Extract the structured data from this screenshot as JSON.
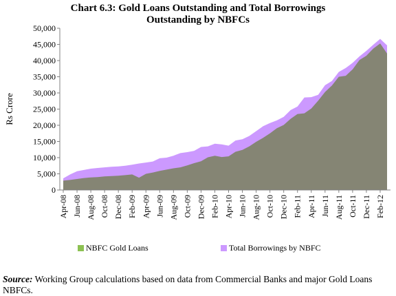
{
  "title_line1": "Chart 6.3: Gold Loans Outstanding and Total Borrowings",
  "title_line2": "Outstanding by NBFCs",
  "source_label": "Source:",
  "source_text": " Working Group calculations based on data from Commercial Banks and major Gold Loans NBFCs.",
  "colors": {
    "gold": "#858574",
    "gold_legend": "#8cc152",
    "borrow": "#cc99ff"
  },
  "chart_data": {
    "type": "area",
    "title": "Chart 6.3: Gold Loans Outstanding and Total Borrowings Outstanding by NBFCs",
    "xlabel": "",
    "ylabel": "Rs Crore",
    "ylim": [
      0,
      50000
    ],
    "yticks": [
      0,
      5000,
      10000,
      15000,
      20000,
      25000,
      30000,
      35000,
      40000,
      45000,
      50000
    ],
    "ytick_labels": [
      "0",
      "5,000",
      "10,000",
      "15,000",
      "20,000",
      "25,000",
      "30,000",
      "35,000",
      "40,000",
      "45,000",
      "50,000"
    ],
    "x": [
      "Apr-08",
      "May-08",
      "Jun-08",
      "Jul-08",
      "Aug-08",
      "Sep-08",
      "Oct-08",
      "Nov-08",
      "Dec-08",
      "Jan-09",
      "Feb-09",
      "Mar-09",
      "Apr-09",
      "May-09",
      "Jun-09",
      "Jul-09",
      "Aug-09",
      "Sep-09",
      "Oct-09",
      "Nov-09",
      "Dec-09",
      "Jan-10",
      "Feb-10",
      "Mar-10",
      "Apr-10",
      "May-10",
      "Jun-10",
      "Jul-10",
      "Aug-10",
      "Sep-10",
      "Oct-10",
      "Nov-10",
      "Dec-10",
      "Jan-11",
      "Feb-11",
      "Mar-11",
      "Apr-11",
      "May-11",
      "Jun-11",
      "Jul-11",
      "Aug-11",
      "Sep-11",
      "Oct-11",
      "Nov-11",
      "Dec-11",
      "Jan-12",
      "Feb-12",
      "Mar-12"
    ],
    "x_tick_labels": [
      "Apr-08",
      "Jun-08",
      "Aug-08",
      "Oct-08",
      "Dec-08",
      "Feb-09",
      "Apr-09",
      "Jun-09",
      "Aug-09",
      "Oct-09",
      "Dec-09",
      "Feb-10",
      "Apr-10",
      "Jun-10",
      "Aug-10",
      "Oct-10",
      "Dec-10",
      "Feb-11",
      "Apr-11",
      "Jun-11",
      "Aug-11",
      "Oct-11",
      "Dec-11",
      "Feb-12"
    ],
    "series": [
      {
        "name": "NBFC Gold Loans",
        "values": [
          2900,
          3100,
          3400,
          3700,
          3900,
          4000,
          4200,
          4300,
          4400,
          4600,
          4800,
          3800,
          5000,
          5400,
          5900,
          6300,
          6700,
          7000,
          7600,
          8300,
          8900,
          10100,
          10600,
          10200,
          10400,
          11800,
          12400,
          13500,
          14900,
          16100,
          17500,
          19100,
          20100,
          22000,
          23500,
          23700,
          25200,
          27600,
          30300,
          32300,
          35000,
          35300,
          37300,
          40200,
          41500,
          43700,
          45300,
          42200
        ]
      },
      {
        "name": "Total Borrowings by NBFC",
        "values": [
          3600,
          4800,
          5800,
          6200,
          6600,
          6800,
          7000,
          7200,
          7300,
          7500,
          7800,
          8200,
          8500,
          8800,
          9800,
          10000,
          10600,
          11400,
          11700,
          12100,
          13300,
          13500,
          14300,
          14100,
          13700,
          15300,
          15700,
          16700,
          18200,
          19700,
          20700,
          21500,
          22600,
          24700,
          25800,
          28600,
          28700,
          29400,
          32400,
          33700,
          36500,
          37700,
          39300,
          41300,
          43000,
          44900,
          46700,
          44700
        ]
      }
    ],
    "legend": "bottom",
    "grid": false
  }
}
